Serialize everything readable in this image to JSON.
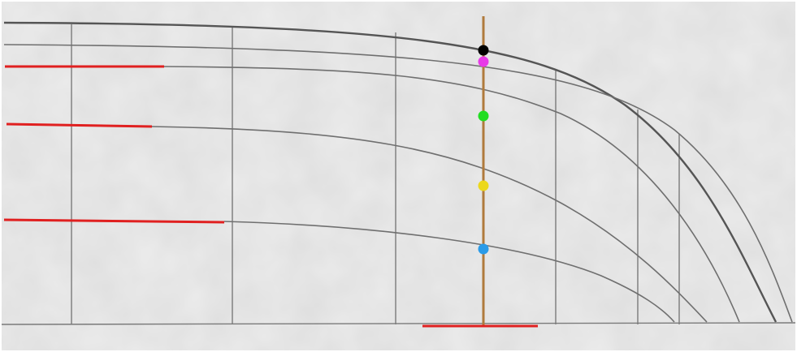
{
  "markers": [
    {
      "color": "#000000"
    },
    {
      "color": "#e83ae8"
    },
    {
      "color": "#22dd22"
    },
    {
      "color": "#ecd81c"
    },
    {
      "color": "#2a9be8"
    }
  ]
}
